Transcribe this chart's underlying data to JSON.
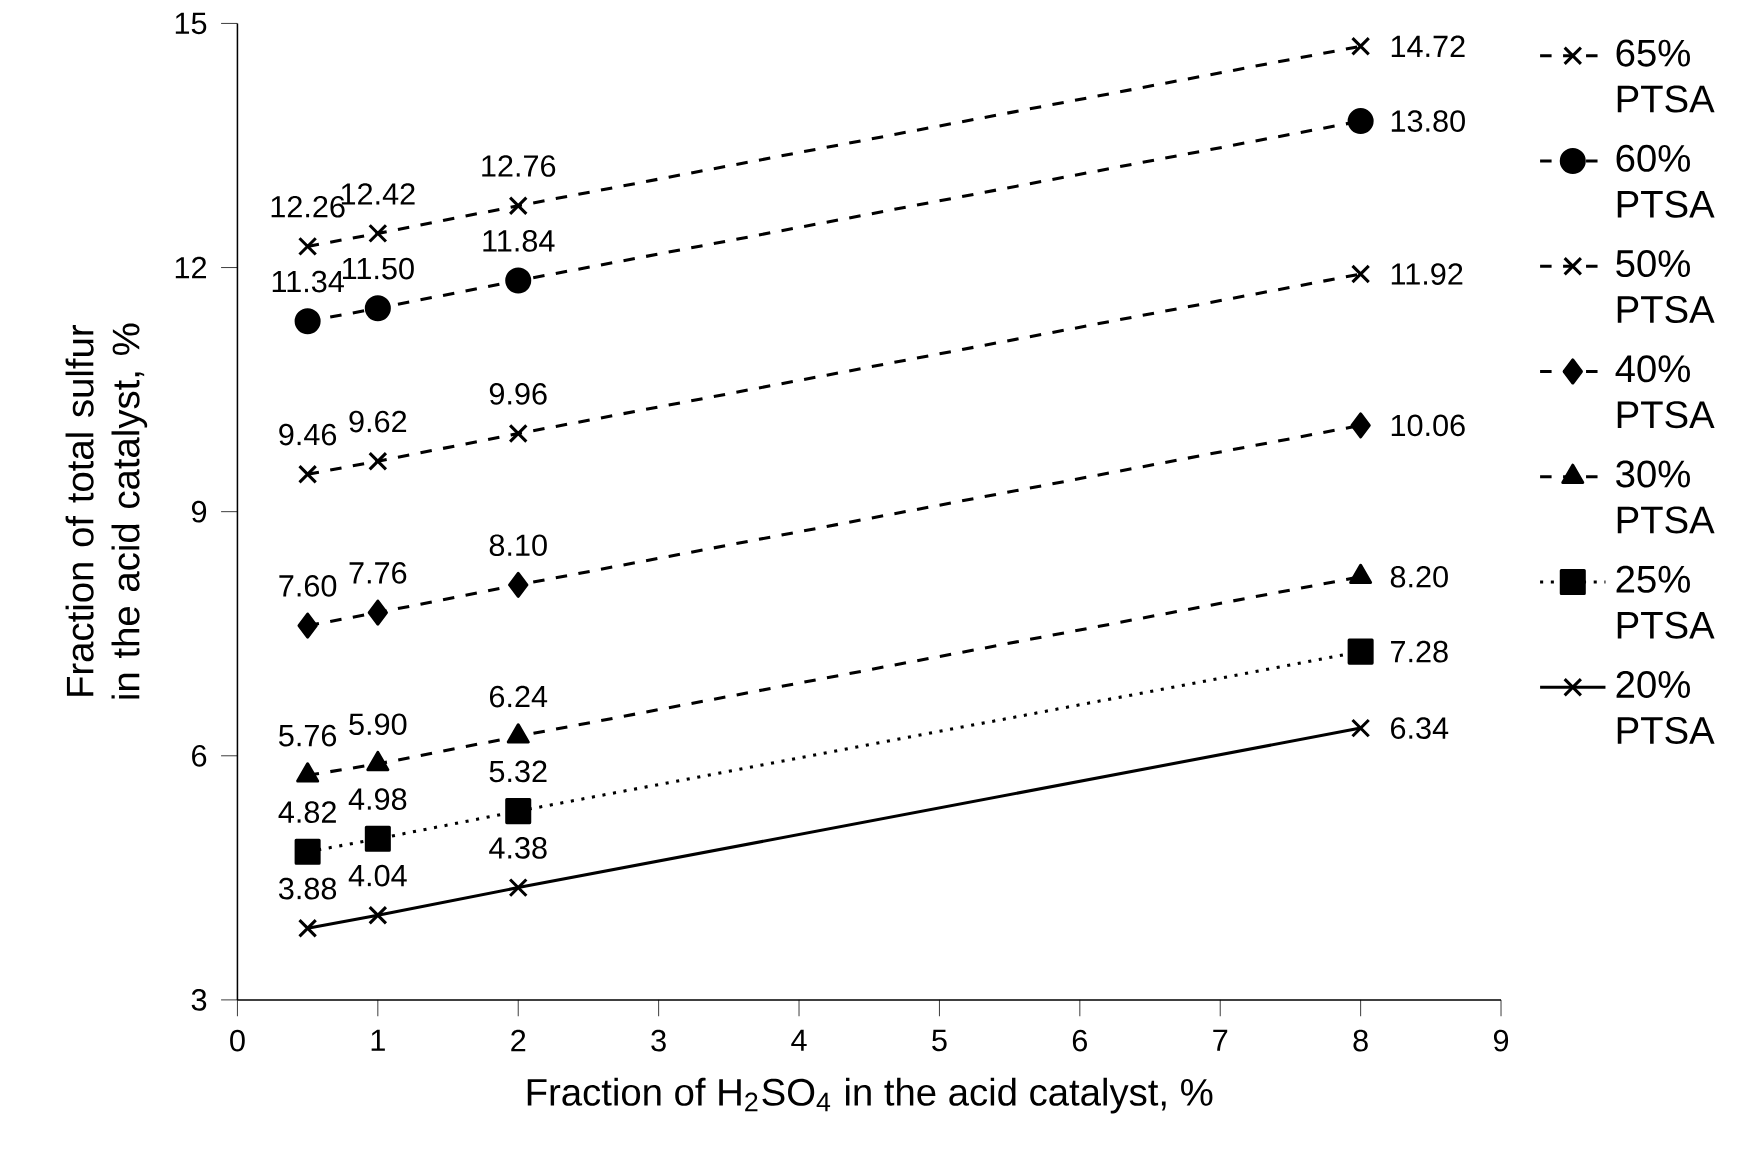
{
  "chart_data": {
    "type": "line",
    "xlabel": "Fraction of H$_{2}$SO$_{4}$ in the acid catalyst, %",
    "ylabel": "Fraction of total sulfur in the acid catalyst, %",
    "x": [
      0.5,
      1,
      2,
      8
    ],
    "xlim": [
      0,
      9
    ],
    "xticks": [
      0,
      1,
      2,
      3,
      4,
      5,
      6,
      7,
      8,
      9
    ],
    "ylim": [
      3,
      15
    ],
    "yticks": [
      3,
      6,
      9,
      12,
      15
    ],
    "grid": false,
    "legend": "right",
    "series": [
      {
        "name": "65% PTSA",
        "color": "#000000",
        "marker": "cross",
        "line_style": "dashed",
        "values": [
          12.26,
          12.42,
          12.76,
          14.72
        ],
        "value_labels": [
          "12.26",
          "12.42",
          "12.76",
          "14.72"
        ]
      },
      {
        "name": "60% PTSA",
        "color": "#000000",
        "marker": "circle",
        "line_style": "dashed",
        "values": [
          11.34,
          11.5,
          11.84,
          13.8
        ],
        "value_labels": [
          "11.34",
          "11.50",
          "11.84",
          "13.80"
        ]
      },
      {
        "name": "50% PTSA",
        "color": "#000000",
        "marker": "cross",
        "line_style": "dashed",
        "values": [
          9.46,
          9.62,
          9.96,
          11.92
        ],
        "value_labels": [
          "9.46",
          "9.62",
          "9.96",
          "11.92"
        ]
      },
      {
        "name": "40% PTSA",
        "color": "#000000",
        "marker": "diamond",
        "line_style": "dashed",
        "values": [
          7.6,
          7.76,
          8.1,
          10.06
        ],
        "value_labels": [
          "7.60",
          "7.76",
          "8.10",
          "10.06"
        ]
      },
      {
        "name": "30% PTSA",
        "color": "#000000",
        "marker": "triangle",
        "line_style": "dashed",
        "values": [
          5.76,
          5.9,
          6.24,
          8.2
        ],
        "value_labels": [
          "5.76",
          "5.90",
          "6.24",
          "8.20"
        ]
      },
      {
        "name": "25% PTSA",
        "color": "#000000",
        "marker": "square",
        "line_style": "dotted",
        "values": [
          4.82,
          4.98,
          5.32,
          7.28
        ],
        "value_labels": [
          "4.82",
          "4.98",
          "5.32",
          "7.28"
        ]
      },
      {
        "name": "20% PTSA",
        "color": "#000000",
        "marker": "cross",
        "line_style": "solid",
        "values": [
          3.88,
          4.04,
          4.38,
          6.34
        ],
        "value_labels": [
          "3.88",
          "4.04",
          "4.38",
          "6.34"
        ]
      }
    ]
  }
}
